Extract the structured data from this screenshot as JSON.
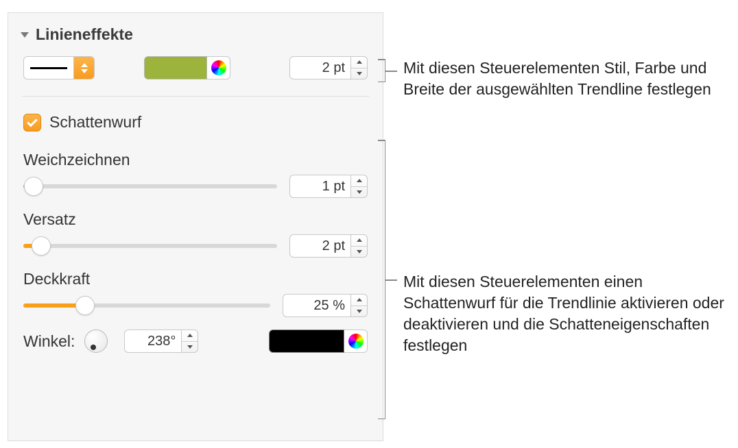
{
  "panel": {
    "background": "#f6f6f6",
    "border": "#dcdcdc",
    "accent_orange": "#f9a01b",
    "section_title": "Linieneffekte",
    "stroke": {
      "width_value": "2 pt",
      "color": "#9cb33c"
    },
    "shadow": {
      "checkbox_label": "Schattenwurf",
      "checked": true,
      "blur": {
        "label": "Weichzeichnen",
        "value": "1 pt",
        "percent": 4
      },
      "offset": {
        "label": "Versatz",
        "value": "2 pt",
        "percent": 7
      },
      "opacity": {
        "label": "Deckkraft",
        "value": "25 %",
        "percent": 25
      },
      "angle": {
        "label": "Winkel:",
        "value": "238°",
        "degrees": 238
      },
      "color": "#000000"
    }
  },
  "callouts": {
    "top": "Mit diesen Steuerelementen Stil, Farbe und Breite der ausgewählten Trendline festlegen",
    "bottom": "Mit diesen Steuerelementen einen Schattenwurf für die Trendlinie aktivieren oder deaktivieren und die Schatteneigenschaften festlegen"
  }
}
